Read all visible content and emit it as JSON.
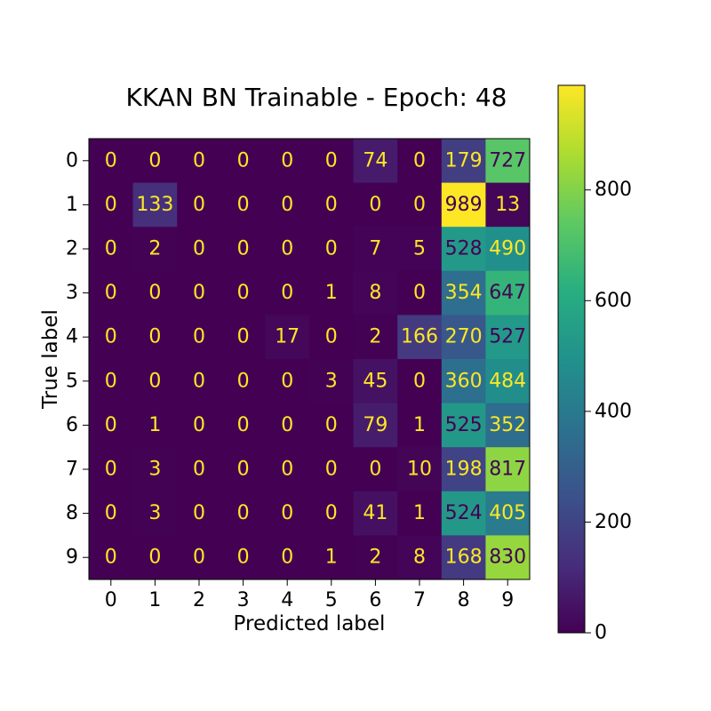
{
  "chart_data": {
    "type": "heatmap",
    "title": "KKAN BN Trainable - Epoch: 48",
    "xlabel": "Predicted label",
    "ylabel": "True label",
    "x_categories": [
      "0",
      "1",
      "2",
      "3",
      "4",
      "5",
      "6",
      "7",
      "8",
      "9"
    ],
    "y_categories": [
      "0",
      "1",
      "2",
      "3",
      "4",
      "5",
      "6",
      "7",
      "8",
      "9"
    ],
    "matrix": [
      [
        0,
        0,
        0,
        0,
        0,
        0,
        74,
        0,
        179,
        727
      ],
      [
        0,
        133,
        0,
        0,
        0,
        0,
        0,
        0,
        989,
        13
      ],
      [
        0,
        2,
        0,
        0,
        0,
        0,
        7,
        5,
        528,
        490
      ],
      [
        0,
        0,
        0,
        0,
        0,
        1,
        8,
        0,
        354,
        647
      ],
      [
        0,
        0,
        0,
        0,
        17,
        0,
        2,
        166,
        270,
        527
      ],
      [
        0,
        0,
        0,
        0,
        0,
        3,
        45,
        0,
        360,
        484
      ],
      [
        0,
        1,
        0,
        0,
        0,
        0,
        79,
        1,
        525,
        352
      ],
      [
        0,
        3,
        0,
        0,
        0,
        0,
        0,
        10,
        198,
        817
      ],
      [
        0,
        3,
        0,
        0,
        0,
        0,
        41,
        1,
        524,
        405
      ],
      [
        0,
        0,
        0,
        0,
        0,
        1,
        2,
        8,
        168,
        830
      ]
    ],
    "colormap": "viridis",
    "color_range": [
      0,
      989
    ],
    "colorbar_ticks": [
      0,
      200,
      400,
      600,
      800
    ],
    "text_color_dark_cells": "#fde725",
    "text_color_light_cells": "#440154",
    "grid": false
  }
}
